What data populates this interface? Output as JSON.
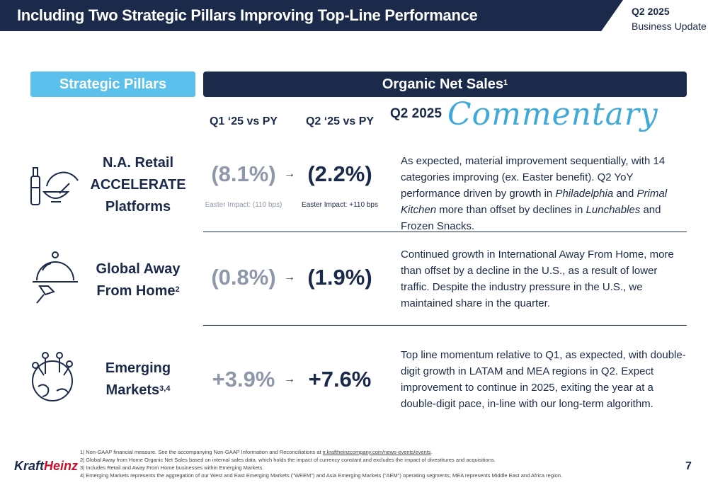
{
  "header": {
    "title": "Including Two Strategic Pillars Improving Top-Line Performance",
    "quarter": "Q2 2025",
    "subtitle": "Business Update"
  },
  "pillars_label": "Strategic Pillars",
  "organic_label": "Organic Net Sales",
  "organic_sup": "1",
  "columns": {
    "q1": "Q1 ‘25 vs PY",
    "q2": "Q2 ‘25 vs PY"
  },
  "commentary": {
    "quarter": "Q2 2025",
    "script": "Commentary"
  },
  "arrow_glyph": "→",
  "rows": [
    {
      "name_line1": "N.A. Retail",
      "name_line2": "ACCELERATE",
      "name_line3": "Platforms",
      "q1": "(8.1%)",
      "q2": "(2.2%)",
      "impact_q1": "Easter Impact: (110 bps)",
      "impact_q2": "Easter Impact: +110 bps",
      "comment_1": "As expected, material improvement sequentially, with 14 categories improving (ex. Easter benefit). Q2 YoY performance driven by growth in ",
      "comment_em1": "Philadelphia",
      "comment_2": " and ",
      "comment_em2": "Primal Kitchen",
      "comment_3": " more than offset by declines in ",
      "comment_em3": "Lunchables",
      "comment_4": " and Frozen Snacks.",
      "icon": "kitchen-scale-icon"
    },
    {
      "name_line1": "Global Away",
      "name_line2": "From Home",
      "name_sup": "2",
      "q1": "(0.8%)",
      "q2": "(1.9%)",
      "comment": "Continued growth in International Away From Home, more than offset by a decline in the U.S., as a result of lower traffic. Despite the industry pressure in the U.S., we maintained share in the quarter.",
      "icon": "serving-cloche-icon"
    },
    {
      "name_line1": "Emerging",
      "name_line2": "Markets",
      "name_sup": "3,4",
      "q1": "+3.9%",
      "q2": "+7.6%",
      "comment": "Top line momentum relative to Q1, as expected, with double-digit growth in LATAM and MEA regions in Q2. Expect improvement to continue in 2025, exiting the year at a double-digit pace, in-line with our long-term algorithm.",
      "icon": "globe-network-icon"
    }
  ],
  "footnotes": {
    "f1_text": "1| Non-GAAP financial measure. See the accompanying Non-GAAP Information and Reconciliations at ",
    "f1_link": "ir.kraftheinzcompany.com/news-events/events",
    "f1_end": ".",
    "f2": "2| Global Away from Home Organic Net Sales based on internal sales data, which holds the impact of currency constant and excludes the impact of divestitures and acquisitions.",
    "f3": "3| Includes Retail and Away From Home businesses within Emerging Markets.",
    "f4": "4| Emerging Markets represents the aggregation of our West and East Emerging Markets (\"WEEM\") and Asia Emerging Markets (\"AEM\") operating segments; MEA represents Middle East and Africa region."
  },
  "logo": {
    "part1": "Kraft",
    "part2": "Heinz"
  },
  "page_number": "7",
  "colors": {
    "navy": "#1b2a4a",
    "light_blue": "#5bc0eb",
    "gray": "#8f98aa",
    "script_blue": "#3fa9d8",
    "heinz_red": "#c8102e"
  }
}
